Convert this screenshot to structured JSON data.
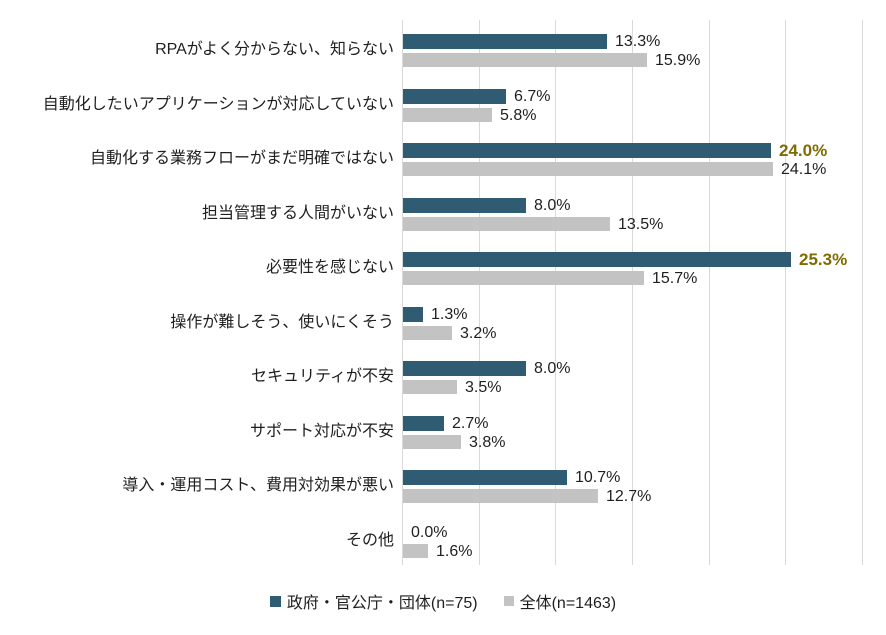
{
  "chart_data": {
    "type": "bar",
    "orientation": "horizontal",
    "title": "",
    "xlabel": "",
    "ylabel": "",
    "xlim": [
      0,
      30
    ],
    "gridline_step": 5,
    "grid": true,
    "legend_position": "bottom",
    "gridline_color": "#D9D9D9",
    "emphasis_color": "#7F6B00",
    "text_color": "#1F1F1F",
    "categories": [
      "RPAがよく分からない、知らない",
      "自動化したいアプリケーションが対応していない",
      "自動化する業務フローがまだ明確ではない",
      "担当管理する人間がいない",
      "必要性を感じない",
      "操作が難しそう、使いにくそう",
      "セキュリティが不安",
      "サポート対応が不安",
      "導入・運用コスト、費用対効果が悪い",
      "その他"
    ],
    "series": [
      {
        "name": "政府・官公庁・団体(n=75)",
        "color": "#2F5B73",
        "values": [
          13.3,
          6.7,
          24.0,
          8.0,
          25.3,
          1.3,
          8.0,
          2.7,
          10.7,
          0.0
        ],
        "labels": [
          "13.3%",
          "6.7%",
          "24.0%",
          "8.0%",
          "25.3%",
          "1.3%",
          "8.0%",
          "2.7%",
          "10.7%",
          "0.0%"
        ],
        "emphasized": [
          false,
          false,
          true,
          false,
          true,
          false,
          false,
          false,
          false,
          false
        ]
      },
      {
        "name": "全体(n=1463)",
        "color": "#C3C3C3",
        "values": [
          15.9,
          5.8,
          24.1,
          13.5,
          15.7,
          3.2,
          3.5,
          3.8,
          12.7,
          1.6
        ],
        "labels": [
          "15.9%",
          "5.8%",
          "24.1%",
          "13.5%",
          "15.7%",
          "3.2%",
          "3.5%",
          "3.8%",
          "12.7%",
          "1.6%"
        ],
        "emphasized": [
          false,
          false,
          false,
          false,
          false,
          false,
          false,
          false,
          false,
          false
        ]
      }
    ]
  },
  "legend": {
    "items": [
      {
        "label": "政府・官公庁・団体(n=75)",
        "color": "#2F5B73"
      },
      {
        "label": "全体(n=1463)",
        "color": "#C3C3C3"
      }
    ]
  }
}
